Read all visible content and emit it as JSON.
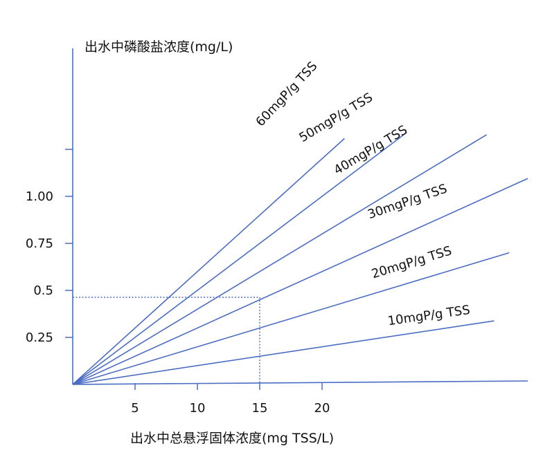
{
  "chart_data": {
    "type": "line",
    "ylabel": "出水中磷酸盐浓度(mg/L)",
    "xlabel": "出水中总悬浮固体浓度(mg TSS/L)",
    "x_ticks": [
      {
        "value": 5,
        "label": "5"
      },
      {
        "value": 10,
        "label": "10"
      },
      {
        "value": 15,
        "label": "15"
      },
      {
        "value": 20,
        "label": "20"
      }
    ],
    "y_ticks": [
      {
        "value": 0.25,
        "label": "0.25"
      },
      {
        "value": 0.5,
        "label": "0.5"
      },
      {
        "value": 0.75,
        "label": "0.75"
      },
      {
        "value": 1.0,
        "label": "1.00"
      },
      {
        "value": 1.25,
        "label": ""
      }
    ],
    "series": [
      {
        "name": "60mgP/g TSS",
        "slope": 0.06
      },
      {
        "name": "50mgP/g TSS",
        "slope": 0.05
      },
      {
        "name": "40mgP/g TSS",
        "slope": 0.04
      },
      {
        "name": "30mgP/g TSS",
        "slope": 0.03
      },
      {
        "name": "20mgP/g TSS",
        "slope": 0.02
      },
      {
        "name": "10mgP/g TSS",
        "slope": 0.01
      }
    ],
    "reference": {
      "x": 15,
      "y": 0.45
    },
    "line_color": "#4a6cc4"
  }
}
